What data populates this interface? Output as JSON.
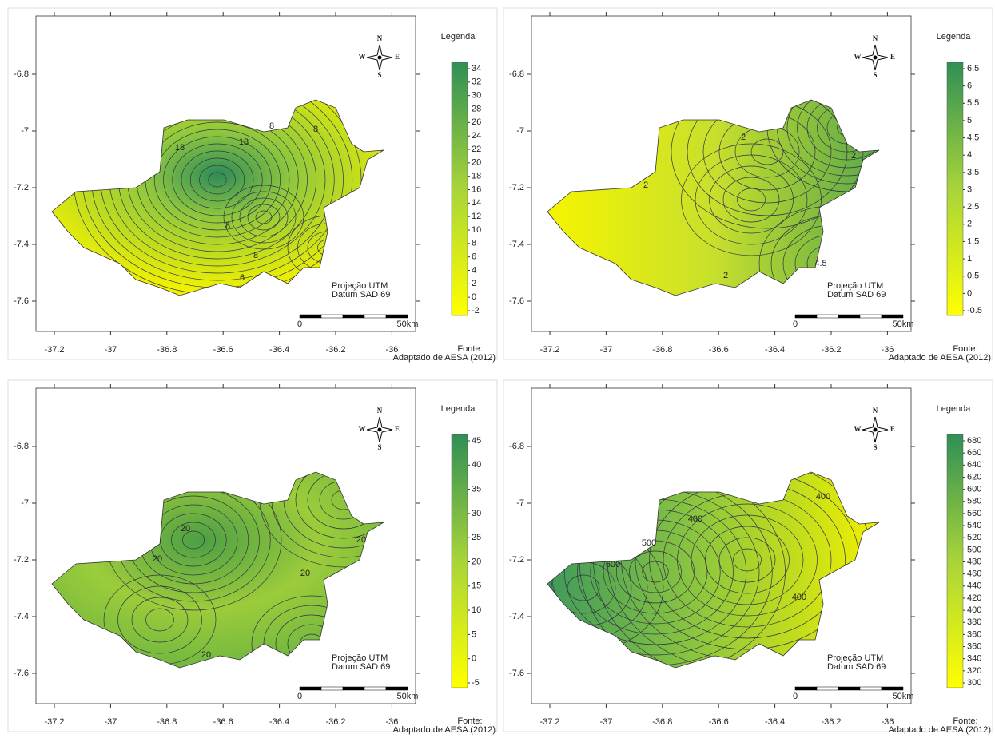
{
  "axes": {
    "xticks": [
      -37.2,
      -37,
      -36.8,
      -36.6,
      -36.4,
      -36.2,
      -36
    ],
    "yticks": [
      -6.8,
      -7,
      -7.2,
      -7.4,
      -7.6
    ]
  },
  "compass": {
    "north": "N",
    "south": "S",
    "west": "W",
    "east": "E"
  },
  "projection": "Projeção UTM",
  "datum": "Datum SAD 69",
  "scale": {
    "start": "0",
    "end": "50km"
  },
  "source_label": "Fonte:",
  "source": "Adaptado de AESA (2012)",
  "maps": [
    {
      "legend_title": "Legenda",
      "legend_ticks": [
        -2,
        0,
        2,
        4,
        6,
        8,
        10,
        12,
        14,
        16,
        18,
        20,
        22,
        24,
        26,
        28,
        30,
        32,
        34
      ],
      "contour_labels": [
        18,
        18,
        8,
        8,
        8,
        8,
        6
      ]
    },
    {
      "legend_title": "Legenda",
      "legend_ticks": [
        -0.5,
        0,
        0.5,
        1,
        1.5,
        2,
        2.5,
        3,
        3.5,
        4,
        4.5,
        5,
        5.5,
        6,
        6.5
      ],
      "contour_labels": [
        2,
        2,
        2,
        4.5,
        2
      ]
    },
    {
      "legend_title": "Legenda",
      "legend_ticks": [
        -5,
        0,
        5,
        10,
        15,
        20,
        25,
        30,
        35,
        40,
        45
      ],
      "contour_labels": [
        20,
        20,
        20,
        20,
        20
      ]
    },
    {
      "legend_title": "Legenda",
      "legend_ticks": [
        300,
        320,
        340,
        360,
        360,
        380,
        400,
        420,
        440,
        460,
        480,
        500,
        520,
        540,
        560,
        580,
        600,
        620,
        640,
        660,
        680
      ],
      "contour_labels": [
        400,
        400,
        500,
        600,
        400
      ]
    }
  ]
}
